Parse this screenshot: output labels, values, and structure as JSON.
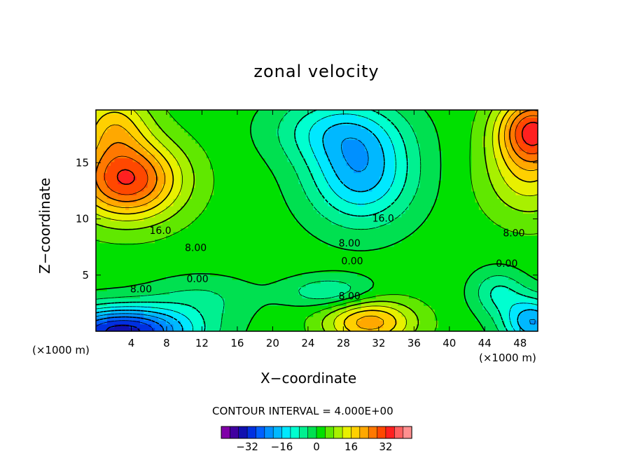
{
  "chart_data": {
    "type": "heatmap",
    "title": "zonal velocity",
    "xlabel": "X−coordinate",
    "ylabel": "Z−coordinate",
    "x_unit_label": "(×1000 m)",
    "y_unit_label": "(×1000 m)",
    "xlim": [
      0,
      50
    ],
    "ylim": [
      0,
      19.7
    ],
    "x_ticks": [
      "4",
      "8",
      "12",
      "16",
      "20",
      "24",
      "28",
      "32",
      "36",
      "40",
      "44",
      "48"
    ],
    "x_tick_values": [
      4,
      8,
      12,
      16,
      20,
      24,
      28,
      32,
      36,
      40,
      44,
      48
    ],
    "y_ticks": [
      "5",
      "10",
      "15"
    ],
    "y_tick_values": [
      5,
      10,
      15
    ],
    "contour_interval_text": "CONTOUR INTERVAL = 4.000E+00",
    "contour_interval": 4,
    "contour_labels": [
      {
        "text": "16.0",
        "x": 7.3,
        "z": 8.9
      },
      {
        "text": "8.00",
        "x": 11.3,
        "z": 7.4
      },
      {
        "text": "0.00",
        "x": 11.5,
        "z": 4.6
      },
      {
        "text": "8.00",
        "x": 5.1,
        "z": 3.7
      },
      {
        "text": "16.0",
        "x": 32.5,
        "z": 10.0
      },
      {
        "text": "8.00",
        "x": 28.7,
        "z": 7.8
      },
      {
        "text": "0.00",
        "x": 29.0,
        "z": 6.2
      },
      {
        "text": "8.00",
        "x": 28.7,
        "z": 3.1
      },
      {
        "text": "8.00",
        "x": 47.3,
        "z": 8.7
      },
      {
        "text": "0.00",
        "x": 46.5,
        "z": 6.0
      }
    ],
    "colorbar": {
      "ticks": [
        "−32",
        "−16",
        "0",
        "16",
        "32"
      ],
      "tick_values": [
        -32,
        -16,
        0,
        16,
        32
      ],
      "levels": [
        -40,
        -36,
        -32,
        -28,
        -24,
        -20,
        -16,
        -12,
        -8,
        -4,
        0,
        4,
        8,
        12,
        16,
        20,
        24,
        28,
        32,
        36,
        40
      ],
      "colors": [
        "#8000a8",
        "#4000a0",
        "#1010b0",
        "#0030e0",
        "#0060ff",
        "#0090ff",
        "#00b8ff",
        "#00e8ff",
        "#00ffd0",
        "#00f090",
        "#00e050",
        "#00e000",
        "#60e800",
        "#a8f000",
        "#e8f000",
        "#ffd000",
        "#ffa800",
        "#ff7800",
        "#ff4800",
        "#ff2020",
        "#ff6060",
        "#ff9090"
      ]
    },
    "features": [
      {
        "name": "upper-left jet",
        "x": 3.5,
        "z": 13.5,
        "value": 32
      },
      {
        "name": "upper-left corner max",
        "x": 2.0,
        "z": 18.5,
        "value": 30
      },
      {
        "name": "upper-right jet",
        "x": 49.0,
        "z": 18.0,
        "value": 30
      },
      {
        "name": "right side max",
        "x": 48.0,
        "z": 14.0,
        "value": 20
      },
      {
        "name": "central negative core",
        "x": 30.0,
        "z": 14.0,
        "value": -18
      },
      {
        "name": "lower-left negative",
        "x": 3.0,
        "z": 0.3,
        "value": -34
      },
      {
        "name": "lower-right negative",
        "x": 49.0,
        "z": 0.8,
        "value": -18
      },
      {
        "name": "lower-central positive",
        "x": 31.0,
        "z": 0.8,
        "value": 22
      }
    ]
  }
}
